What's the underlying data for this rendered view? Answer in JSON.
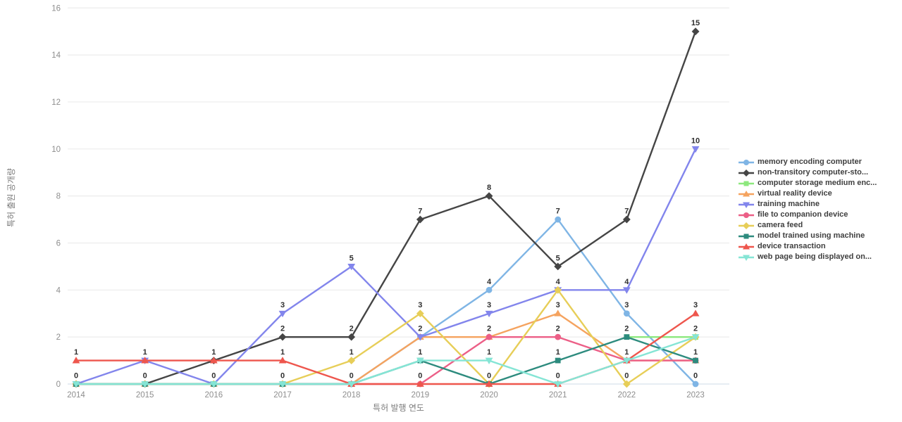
{
  "chart_data": {
    "type": "line",
    "title": "",
    "xlabel": "특허 발행 연도",
    "ylabel": "특허 출원 공개량",
    "x": [
      2014,
      2015,
      2016,
      2017,
      2018,
      2019,
      2020,
      2021,
      2022,
      2023
    ],
    "ylim": [
      0,
      16
    ],
    "yticks": [
      0,
      2,
      4,
      6,
      8,
      10,
      12,
      14,
      16
    ],
    "grid": "horizontal-only",
    "legend_position": "right",
    "point_labels": "each unique value per year shown in bold above marker",
    "series": [
      {
        "name": "memory encoding computer",
        "color": "#7fb5e5",
        "marker": "circle",
        "values": [
          0,
          0,
          0,
          0,
          0,
          2,
          4,
          7,
          3,
          0
        ]
      },
      {
        "name": "non-transitory computer-sto...",
        "color": "#454545",
        "marker": "diamond",
        "values": [
          0,
          0,
          1,
          2,
          2,
          7,
          8,
          5,
          7,
          15
        ]
      },
      {
        "name": "computer storage medium enc...",
        "color": "#8de87e",
        "marker": "square",
        "values": [
          null,
          null,
          null,
          null,
          null,
          null,
          null,
          null,
          2,
          2
        ]
      },
      {
        "name": "virtual reality device",
        "color": "#f5a35f",
        "marker": "triangle-up",
        "values": [
          0,
          0,
          0,
          0,
          0,
          2,
          2,
          3,
          1,
          1
        ]
      },
      {
        "name": "training machine",
        "color": "#8285ec",
        "marker": "triangle-down",
        "values": [
          0,
          1,
          0,
          3,
          5,
          2,
          3,
          4,
          4,
          10
        ]
      },
      {
        "name": "file to companion device",
        "color": "#ec5f87",
        "marker": "circle",
        "values": [
          0,
          0,
          0,
          0,
          0,
          0,
          2,
          2,
          1,
          1
        ]
      },
      {
        "name": "camera feed",
        "color": "#e7ce58",
        "marker": "diamond",
        "values": [
          0,
          0,
          0,
          0,
          1,
          3,
          0,
          4,
          0,
          2
        ]
      },
      {
        "name": "model trained using machine",
        "color": "#2d8b7e",
        "marker": "square",
        "values": [
          0,
          0,
          0,
          0,
          0,
          1,
          0,
          1,
          2,
          1
        ]
      },
      {
        "name": "device transaction",
        "color": "#ee564d",
        "marker": "triangle-up",
        "values": [
          1,
          1,
          1,
          1,
          0,
          0,
          0,
          0,
          1,
          3
        ]
      },
      {
        "name": "web page being displayed on...",
        "color": "#85e5d5",
        "marker": "triangle-down",
        "values": [
          0,
          0,
          0,
          0,
          0,
          1,
          1,
          0,
          1,
          2
        ]
      }
    ]
  },
  "colors": {
    "background": "#ffffff",
    "gridline": "#ececec",
    "axis_baseline": "#d8e2ec",
    "tick_text": "#8e8e8e",
    "axis_title_text": "#7c7c7c",
    "point_label_text": "#2f2f2f",
    "legend_text": "#3f3f3f"
  }
}
